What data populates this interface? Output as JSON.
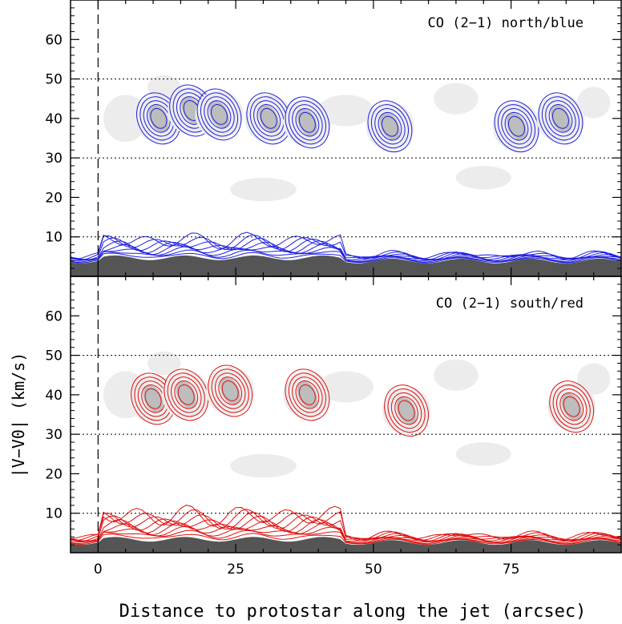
{
  "chart_data": [
    {
      "type": "heatmap",
      "title": "CO (2−1) north/blue",
      "contour_color": "#1f1fe0",
      "xlabel": "Distance to protostar along the jet (arcsec)",
      "xlim": [
        -5,
        95
      ],
      "ylim": [
        0,
        70
      ],
      "x_ticks": [
        0,
        25,
        50,
        75
      ],
      "y_ticks": [
        10,
        20,
        30,
        40,
        50,
        60
      ],
      "grid_y": [
        10,
        30,
        50
      ],
      "reference_x": 0,
      "knots": [
        {
          "x": 11,
          "v": 40
        },
        {
          "x": 17,
          "v": 42
        },
        {
          "x": 22,
          "v": 41
        },
        {
          "x": 31,
          "v": 40
        },
        {
          "x": 38,
          "v": 39
        },
        {
          "x": 53,
          "v": 38
        },
        {
          "x": 76,
          "v": 38
        },
        {
          "x": 84,
          "v": 40
        }
      ]
    },
    {
      "type": "heatmap",
      "title": "CO (2−1) south/red",
      "contour_color": "#e01010",
      "xlabel": "Distance to protostar along the jet (arcsec)",
      "xlim": [
        -5,
        95
      ],
      "ylim": [
        0,
        70
      ],
      "x_ticks": [
        0,
        25,
        50,
        75
      ],
      "x_tick_labels": [
        "0",
        "25",
        "50",
        "75"
      ],
      "y_ticks": [
        10,
        20,
        30,
        40,
        50,
        60
      ],
      "grid_y": [
        10,
        30,
        50
      ],
      "reference_x": 0,
      "knots": [
        {
          "x": 10,
          "v": 39
        },
        {
          "x": 16,
          "v": 40
        },
        {
          "x": 24,
          "v": 41
        },
        {
          "x": 38,
          "v": 40
        },
        {
          "x": 56,
          "v": 36
        },
        {
          "x": 86,
          "v": 37
        }
      ]
    }
  ],
  "ylabel": "|V−V0|  (km/s)"
}
